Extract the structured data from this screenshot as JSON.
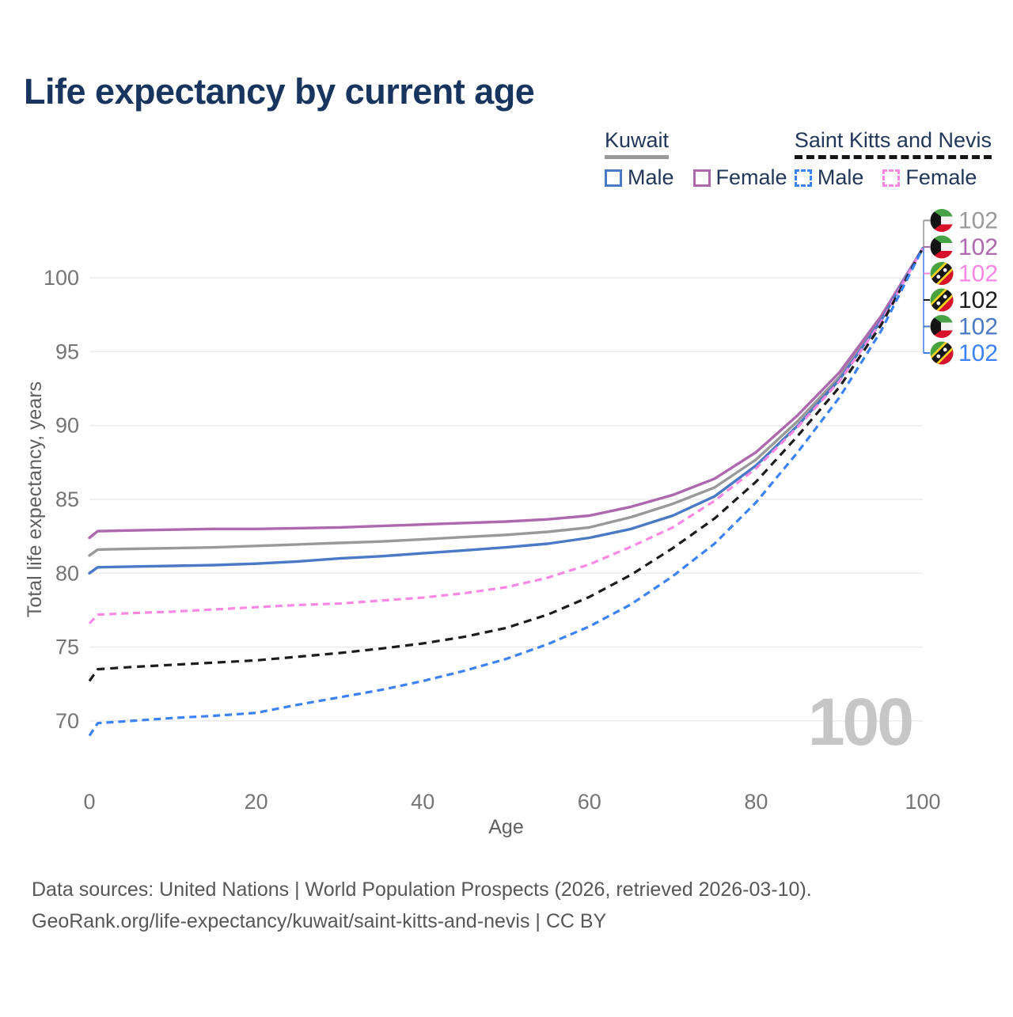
{
  "title": "Life expectancy by current age",
  "legend": {
    "groups": [
      {
        "name": "Kuwait",
        "line_style": "solid",
        "underline_color": "#999999",
        "items": [
          {
            "label": "Male",
            "color": "#4a79c5",
            "dashed": false
          },
          {
            "label": "Female",
            "color": "#ad68ae",
            "dashed": false
          }
        ]
      },
      {
        "name": "Saint Kitts and Nevis",
        "line_style": "dashed",
        "underline_color": "#151515",
        "items": [
          {
            "label": "Male",
            "color": "#3b82f6",
            "dashed": true
          },
          {
            "label": "Female",
            "color": "#f988e4",
            "dashed": true
          }
        ]
      }
    ]
  },
  "chart_data": {
    "type": "line",
    "title": "Life expectancy by current age",
    "xlabel": "Age",
    "ylabel": "Total life expectancy, years",
    "xticks": [
      0,
      20,
      40,
      60,
      80,
      100
    ],
    "yticks": [
      70,
      75,
      80,
      85,
      90,
      95,
      100
    ],
    "xlim": [
      0,
      100
    ],
    "ylim": [
      68.5,
      103
    ],
    "grid": "horizontal",
    "watermark": "100",
    "x": [
      0,
      1,
      5,
      10,
      15,
      20,
      25,
      30,
      35,
      40,
      45,
      50,
      55,
      60,
      65,
      70,
      75,
      80,
      85,
      90,
      95,
      100
    ],
    "series": [
      {
        "name": "Kuwait",
        "slug": "kuwait-all",
        "flag": "kw",
        "color": "#999999",
        "dash": "",
        "label_row": 0,
        "end_value": "102",
        "values": [
          81.2,
          81.6,
          81.65,
          81.7,
          81.75,
          81.85,
          81.95,
          82.05,
          82.15,
          82.3,
          82.45,
          82.6,
          82.8,
          83.1,
          83.8,
          84.7,
          85.8,
          87.7,
          90.3,
          93.3,
          97.2,
          102
        ]
      },
      {
        "name": "Kuwait Female",
        "slug": "kuwait-female",
        "flag": "kw",
        "color": "#ad68ae",
        "dash": "",
        "label_row": 1,
        "end_value": "102",
        "values": [
          82.4,
          82.85,
          82.9,
          82.95,
          83.0,
          83.0,
          83.05,
          83.1,
          83.2,
          83.3,
          83.4,
          83.5,
          83.65,
          83.9,
          84.5,
          85.3,
          86.4,
          88.2,
          90.7,
          93.6,
          97.4,
          102
        ]
      },
      {
        "name": "Kuwait Male",
        "slug": "kuwait-male",
        "flag": "kw",
        "color": "#4a79c5",
        "dash": "",
        "label_row": 4,
        "end_value": "102",
        "values": [
          80.0,
          80.4,
          80.45,
          80.5,
          80.55,
          80.65,
          80.8,
          81.0,
          81.15,
          81.35,
          81.55,
          81.75,
          82.0,
          82.4,
          83.0,
          83.9,
          85.2,
          87.3,
          90.0,
          93.1,
          97.1,
          102
        ]
      },
      {
        "name": "Saint Kitts and Nevis Female",
        "slug": "saint-kitts-nevis-female",
        "flag": "kn",
        "color": "#f988e4",
        "dash": "9 6",
        "label_row": 2,
        "end_value": "102",
        "values": [
          76.6,
          77.2,
          77.3,
          77.4,
          77.55,
          77.7,
          77.85,
          77.95,
          78.15,
          78.35,
          78.65,
          79.05,
          79.7,
          80.6,
          81.8,
          83.1,
          84.9,
          87.1,
          89.9,
          93.0,
          97.0,
          102
        ]
      },
      {
        "name": "Saint Kitts and Nevis",
        "slug": "saint-kitts-nevis-all",
        "flag": "kn",
        "color": "#1c1c1c",
        "dash": "10 7",
        "label_row": 3,
        "end_value": "102",
        "values": [
          72.7,
          73.5,
          73.65,
          73.8,
          73.95,
          74.1,
          74.35,
          74.6,
          74.9,
          75.25,
          75.7,
          76.3,
          77.2,
          78.4,
          79.9,
          81.7,
          83.7,
          86.2,
          89.3,
          92.6,
          96.8,
          102
        ]
      },
      {
        "name": "Saint Kitts and Nevis Male",
        "slug": "saint-kitts-nevis-male",
        "flag": "kn",
        "color": "#3b82f6",
        "dash": "9 6",
        "label_row": 5,
        "end_value": "102",
        "values": [
          69.0,
          69.85,
          70.0,
          70.2,
          70.35,
          70.55,
          71.1,
          71.6,
          72.1,
          72.7,
          73.4,
          74.2,
          75.2,
          76.4,
          77.9,
          79.8,
          82.0,
          84.8,
          88.2,
          91.9,
          96.4,
          102
        ]
      }
    ]
  },
  "footer": {
    "line1": "Data sources: United Nations | World Population Prospects (2026, retrieved 2026-03-10).",
    "line2": "GeoRank.org/life-expectancy/kuwait/saint-kitts-and-nevis | CC BY"
  }
}
